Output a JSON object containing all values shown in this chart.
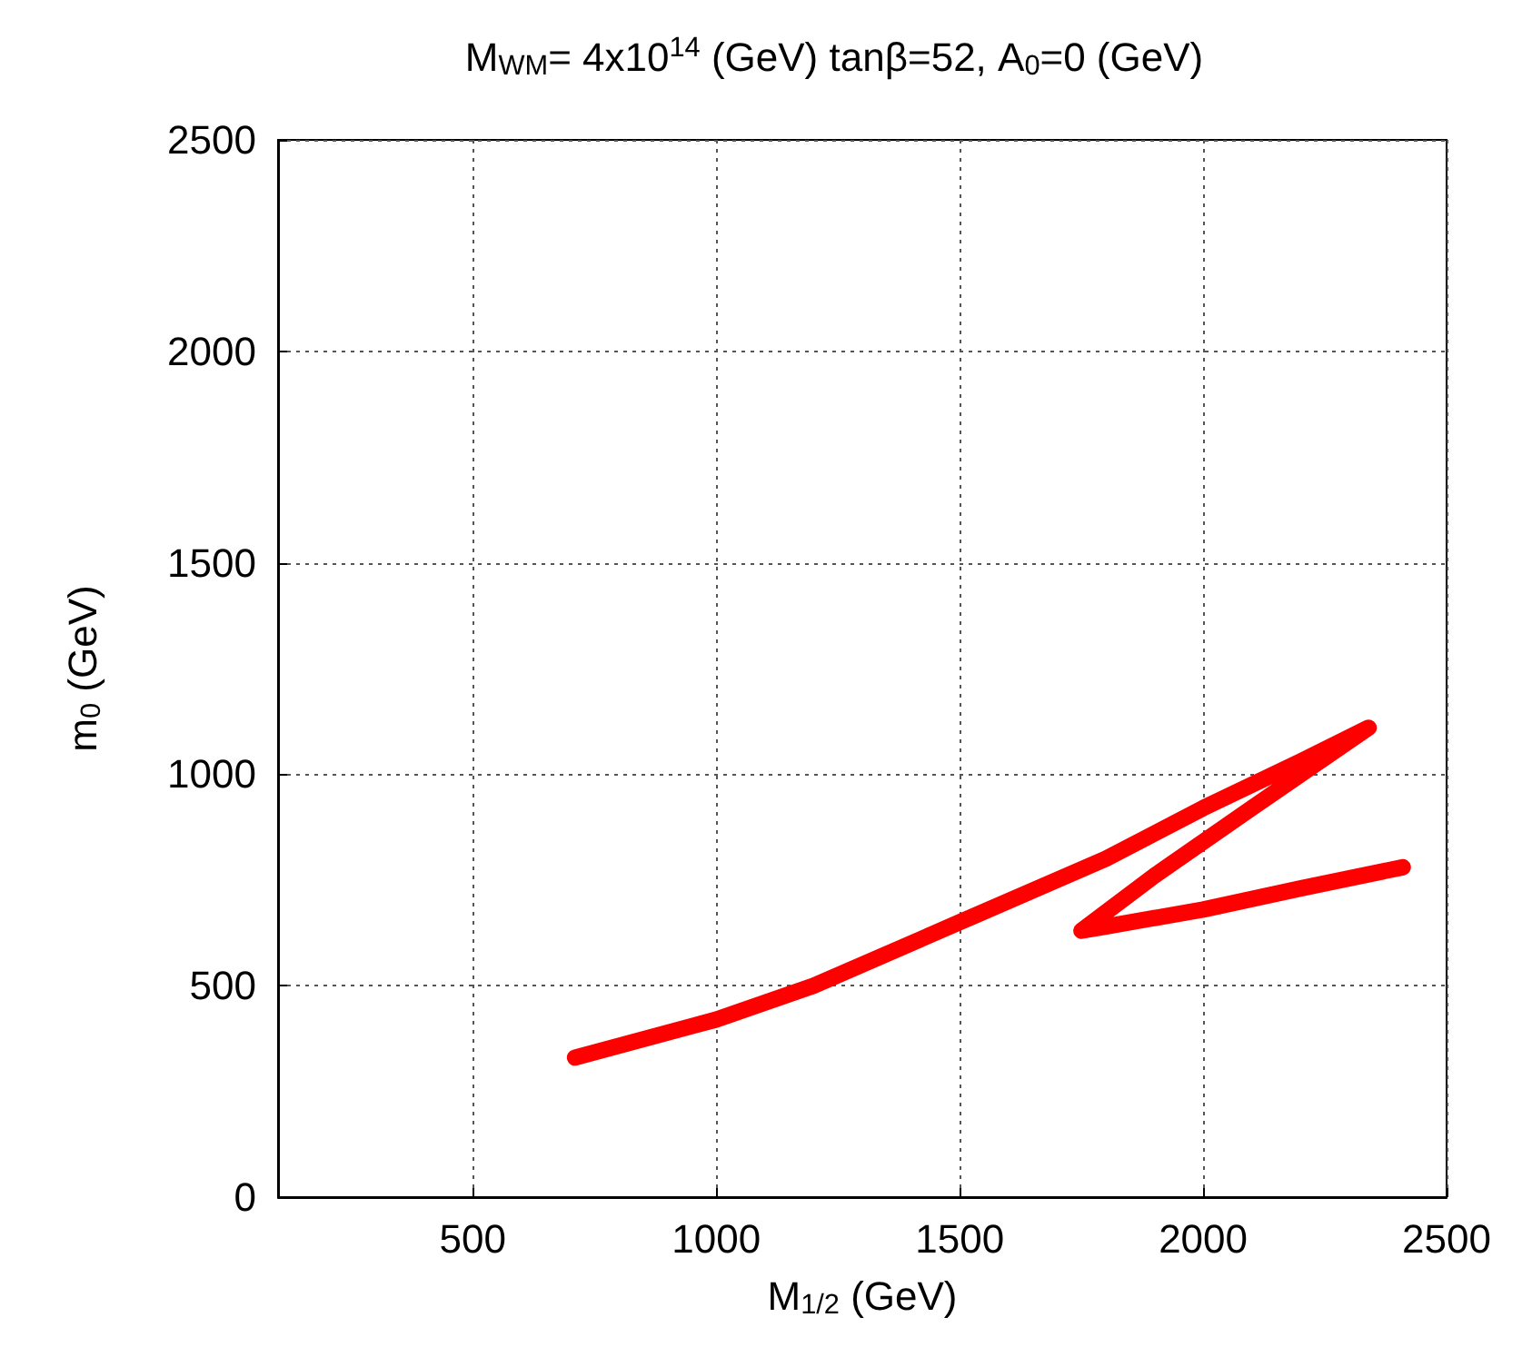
{
  "chart_data": {
    "type": "line",
    "title": "M$_{W}$$_{M}$= 4x10$^{14}$ (GeV) tanβ=52, A$_{0}$=0 (GeV)",
    "xlabel": "M$_{1/2}$ (GeV)",
    "ylabel": "m$_{0}$ (GeV)",
    "xlim": [
      100,
      2500
    ],
    "xticks": [
      500,
      1000,
      1500,
      2000,
      2500
    ],
    "ylim": [
      0,
      2500
    ],
    "yticks": [
      0,
      500,
      1000,
      1500,
      2000,
      2500
    ],
    "grid": true,
    "line_style": "solid",
    "series": [
      {
        "color": "#ff0000",
        "x": [
          710,
          1000,
          1200,
          1500,
          1800,
          2000,
          2200,
          2340,
          2100,
          1900,
          1750,
          1800,
          2000,
          2200,
          2410
        ],
        "values": [
          330,
          420,
          500,
          650,
          800,
          920,
          1030,
          1110,
          920,
          760,
          630,
          640,
          680,
          730,
          780
        ]
      }
    ]
  }
}
